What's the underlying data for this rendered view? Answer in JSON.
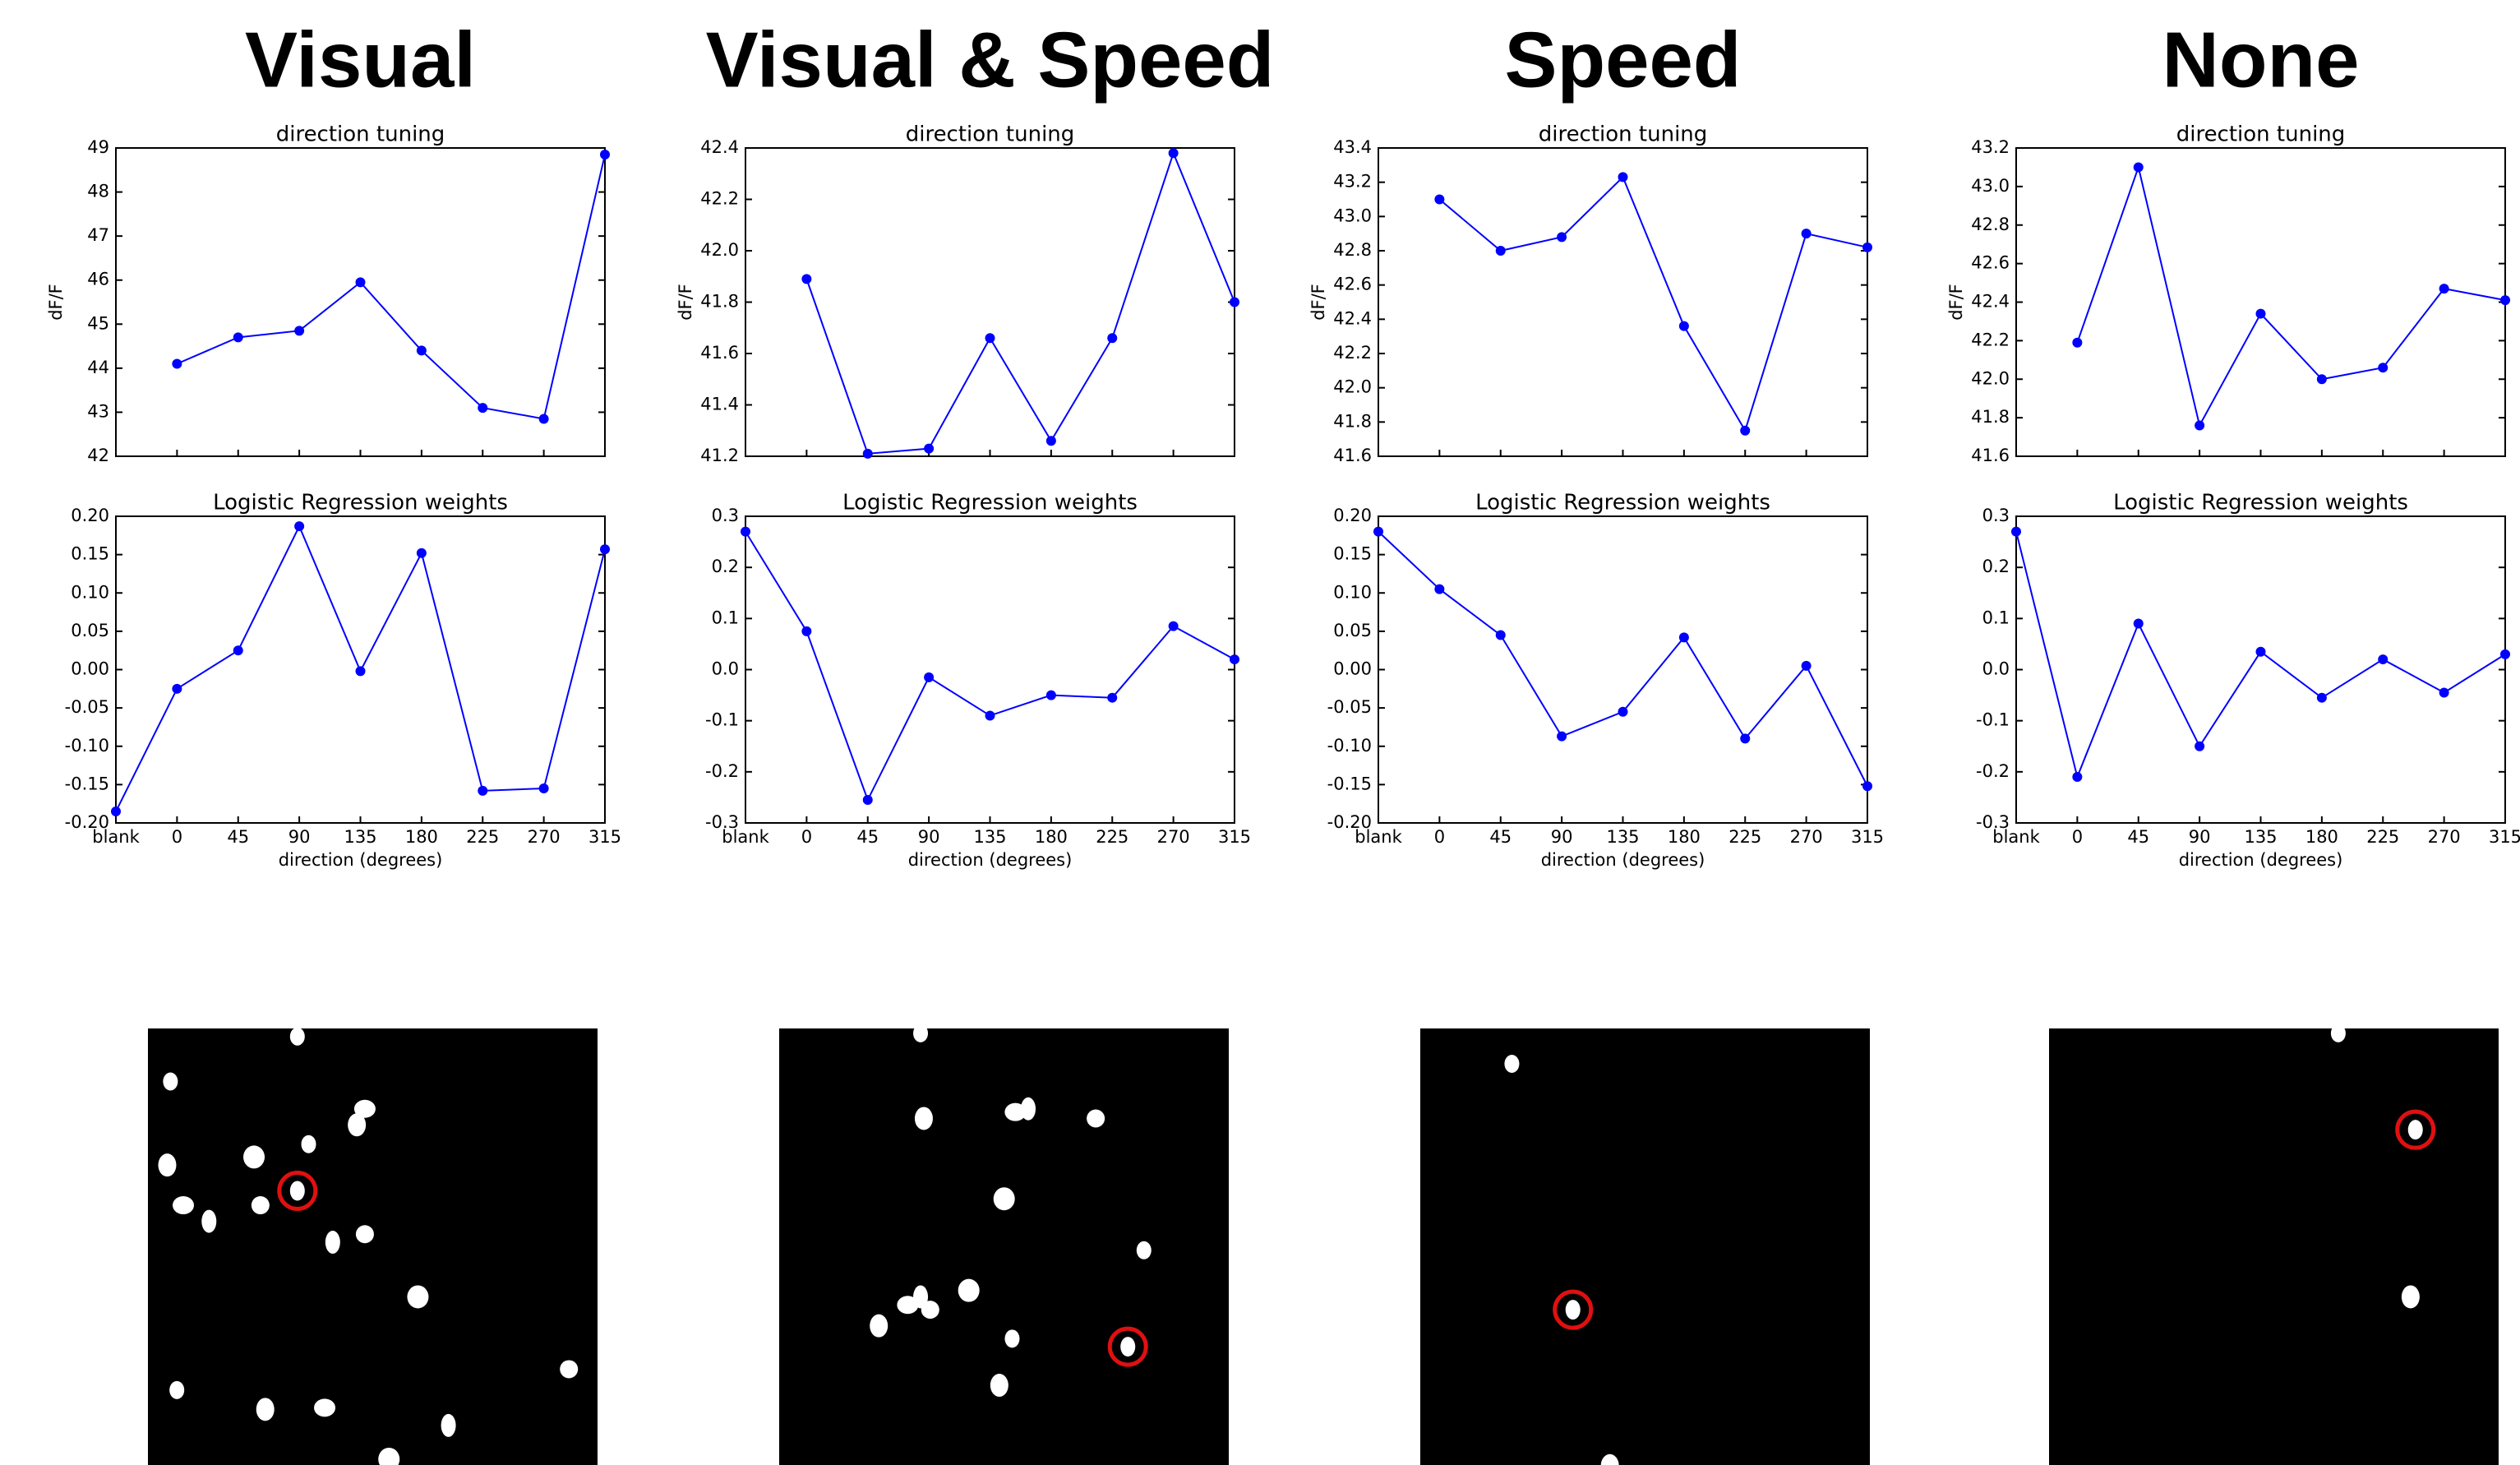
{
  "headings": [
    {
      "text": "Visual",
      "color": "#ffd700"
    },
    {
      "text": "Visual & Speed",
      "color": "#9acd32"
    },
    {
      "text": "Speed",
      "color": "#87cefa"
    },
    {
      "text": "None",
      "color": "#d3d3d3"
    }
  ],
  "chart_data": [
    {
      "type": "line",
      "title": "direction tuning",
      "y_label": "dF/F",
      "color": "#0000ff",
      "categories": [
        null,
        null,
        null,
        null,
        null,
        null,
        null,
        null,
        null
      ],
      "values": [
        null,
        44.1,
        44.7,
        44.85,
        45.95,
        44.4,
        43.1,
        42.85,
        48.85
      ],
      "ylim": [
        42,
        49
      ],
      "yticks": [
        42,
        43,
        44,
        45,
        46,
        47,
        48,
        49
      ]
    },
    {
      "type": "line",
      "title": "Logistic Regression weights",
      "x_label": "direction (degrees)",
      "color": "#0000ff",
      "categories": [
        "blank",
        "0",
        "45",
        "90",
        "135",
        "180",
        "225",
        "270",
        "315"
      ],
      "values": [
        -0.185,
        -0.025,
        0.025,
        0.187,
        -0.002,
        0.152,
        -0.158,
        -0.155,
        0.157
      ],
      "ylim": [
        -0.2,
        0.2
      ],
      "yticks": [
        {
          "value": -0.2,
          "label": "-0.20"
        },
        -0.15,
        {
          "value": -0.1,
          "label": "-0.10"
        },
        -0.05,
        {
          "value": 0,
          "label": "0.00"
        },
        0.05,
        {
          "value": 0.1,
          "label": "0.10"
        },
        0.15,
        {
          "value": 0.2,
          "label": "0.20"
        }
      ]
    },
    {
      "type": "line",
      "title": "direction tuning",
      "y_label": "dF/F",
      "color": "#0000ff",
      "categories": [
        null,
        null,
        null,
        null,
        null,
        null,
        null,
        null,
        null
      ],
      "values": [
        null,
        41.89,
        41.21,
        41.23,
        41.66,
        41.26,
        41.66,
        42.38,
        41.8
      ],
      "ylim": [
        41.2,
        42.4
      ],
      "yticks": [
        41.2,
        41.4,
        41.6,
        41.8,
        {
          "value": 42,
          "label": "42.0"
        },
        42.2,
        42.4
      ]
    },
    {
      "type": "line",
      "title": "Logistic Regression weights",
      "x_label": "direction (degrees)",
      "color": "#0000ff",
      "categories": [
        "blank",
        "0",
        "45",
        "90",
        "135",
        "180",
        "225",
        "270",
        "315"
      ],
      "values": [
        0.27,
        0.075,
        -0.255,
        -0.015,
        -0.09,
        -0.05,
        -0.055,
        0.085,
        0.02
      ],
      "ylim": [
        -0.3,
        0.3
      ],
      "yticks": [
        -0.3,
        -0.2,
        -0.1,
        {
          "value": 0,
          "label": "0.0"
        },
        0.1,
        0.2,
        0.3
      ]
    },
    {
      "type": "line",
      "title": "direction tuning",
      "y_label": "dF/F",
      "color": "#0000ff",
      "categories": [
        null,
        null,
        null,
        null,
        null,
        null,
        null,
        null,
        null
      ],
      "values": [
        null,
        43.1,
        42.8,
        42.88,
        43.23,
        42.36,
        41.75,
        42.9,
        42.82
      ],
      "ylim": [
        41.6,
        43.4
      ],
      "yticks": [
        41.6,
        41.8,
        {
          "value": 42,
          "label": "42.0"
        },
        42.2,
        42.4,
        42.6,
        42.8,
        {
          "value": 43,
          "label": "43.0"
        },
        43.2,
        43.4
      ]
    },
    {
      "type": "line",
      "title": "Logistic Regression weights",
      "x_label": "direction (degrees)",
      "color": "#0000ff",
      "categories": [
        "blank",
        "0",
        "45",
        "90",
        "135",
        "180",
        "225",
        "270",
        "315"
      ],
      "values": [
        0.18,
        0.105,
        0.045,
        -0.087,
        -0.055,
        0.042,
        -0.09,
        0.005,
        -0.152
      ],
      "ylim": [
        -0.2,
        0.2
      ],
      "yticks": [
        {
          "value": -0.2,
          "label": "-0.20"
        },
        -0.15,
        {
          "value": -0.1,
          "label": "-0.10"
        },
        -0.05,
        {
          "value": 0,
          "label": "0.00"
        },
        0.05,
        {
          "value": 0.1,
          "label": "0.10"
        },
        0.15,
        {
          "value": 0.2,
          "label": "0.20"
        }
      ]
    },
    {
      "type": "line",
      "title": "direction tuning",
      "y_label": "dF/F",
      "color": "#0000ff",
      "categories": [
        null,
        null,
        null,
        null,
        null,
        null,
        null,
        null,
        null
      ],
      "values": [
        null,
        42.19,
        43.1,
        41.76,
        42.34,
        42.0,
        42.06,
        42.47,
        42.41
      ],
      "ylim": [
        41.6,
        43.2
      ],
      "yticks": [
        41.6,
        41.8,
        {
          "value": 42,
          "label": "42.0"
        },
        42.2,
        42.4,
        42.6,
        42.8,
        {
          "value": 43,
          "label": "43.0"
        },
        43.2
      ]
    },
    {
      "type": "line",
      "title": "Logistic Regression weights",
      "x_label": "direction (degrees)",
      "color": "#0000ff",
      "categories": [
        "blank",
        "0",
        "45",
        "90",
        "135",
        "180",
        "225",
        "270",
        "315"
      ],
      "values": [
        0.27,
        -0.21,
        0.09,
        -0.15,
        0.035,
        -0.055,
        0.02,
        -0.045,
        0.03
      ],
      "ylim": [
        -0.3,
        0.3
      ],
      "yticks": [
        -0.3,
        -0.2,
        -0.1,
        {
          "value": 0,
          "label": "0.0"
        },
        0.1,
        0.2,
        0.3
      ]
    }
  ]
}
